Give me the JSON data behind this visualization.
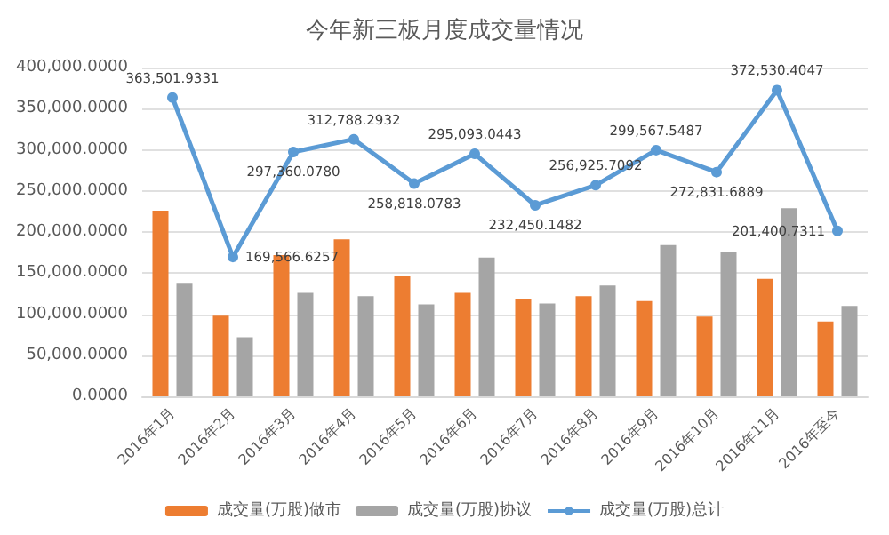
{
  "chart_data": {
    "type": "bar",
    "title": "今年新三板月度成交量情况",
    "categories": [
      "2016年1月",
      "2016年2月",
      "2016年3月",
      "2016年4月",
      "2016年5月",
      "2016年6月",
      "2016年7月",
      "2016年8月",
      "2016年9月",
      "2016年10月",
      "2016年11月",
      "2016年至今"
    ],
    "series": [
      {
        "name": "成交量(万股)做市",
        "color": "#ed7d31",
        "values": [
          226000,
          98000,
          172000,
          191000,
          146000,
          126000,
          119000,
          122000,
          116000,
          97000,
          143000,
          91000
        ]
      },
      {
        "name": "成交量(万股)协议",
        "color": "#a5a5a5",
        "values": [
          137000,
          72000,
          126000,
          122000,
          112000,
          169000,
          113000,
          135000,
          184000,
          176000,
          229000,
          110000
        ]
      },
      {
        "name": "成交量(万股)总计",
        "type": "line",
        "color": "#5b9bd5",
        "marker": "circle",
        "values": [
          363501.9331,
          169566.6257,
          297360.078,
          312788.2932,
          258818.0783,
          295093.0443,
          232450.1482,
          256925.7092,
          299567.5487,
          272831.6889,
          372530.4047,
          201400.7311
        ],
        "value_labels": [
          "363,501.9331",
          "169,566.6257",
          "297,360.0780",
          "312,788.2932",
          "258,818.0783",
          "295,093.0443",
          "232,450.1482",
          "256,925.7092",
          "299,567.5487",
          "272,831.6889",
          "372,530.4047",
          "201,400.7311"
        ]
      }
    ],
    "ylim": [
      0,
      400000
    ],
    "yticks": [
      {
        "value": 0,
        "label": "0.0000"
      },
      {
        "value": 50000,
        "label": "50,000.0000"
      },
      {
        "value": 100000,
        "label": "100,000.0000"
      },
      {
        "value": 150000,
        "label": "150,000.0000"
      },
      {
        "value": 200000,
        "label": "200,000.0000"
      },
      {
        "value": 250000,
        "label": "250,000.0000"
      },
      {
        "value": 300000,
        "label": "300,000.0000"
      },
      {
        "value": 350000,
        "label": "350,000.0000"
      },
      {
        "value": 400000,
        "label": "400,000.0000"
      }
    ],
    "grid": "y",
    "legend": "bottom"
  }
}
